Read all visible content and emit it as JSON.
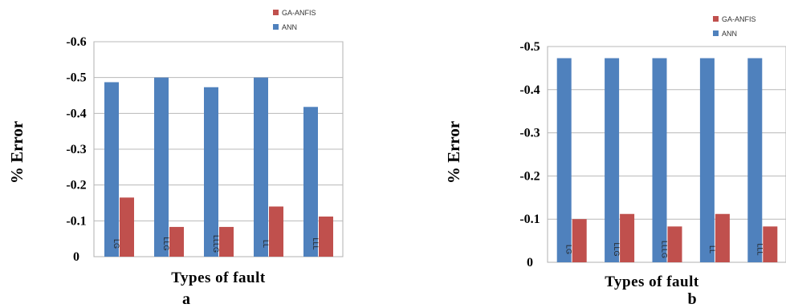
{
  "chart_data": [
    {
      "type": "bar",
      "panel_label": "a",
      "categories": [
        "LG",
        "LLG",
        "LLLG",
        "LL",
        "LLL"
      ],
      "ylabel": "% Error",
      "xlabel": "Types of fault",
      "yticks": [
        "0",
        "-0.1",
        "-0.2",
        "-0.3",
        "-0.4",
        "-0.5",
        "-0.6"
      ],
      "ylim": [
        0,
        -0.6
      ],
      "legend_position": "top-right",
      "series": [
        {
          "name": "GA-ANFIS",
          "color": "#c0504d",
          "values": [
            -0.165,
            -0.083,
            -0.083,
            -0.14,
            -0.112
          ]
        },
        {
          "name": "ANN",
          "color": "#4f81bd",
          "values": [
            -0.487,
            -0.5,
            -0.473,
            -0.5,
            -0.418
          ]
        }
      ]
    },
    {
      "type": "bar",
      "panel_label": "b",
      "categories": [
        "LG",
        "LLG",
        "LLLG",
        "LL",
        "LLL"
      ],
      "ylabel": "% Error",
      "xlabel": "Types of fault",
      "yticks": [
        "0",
        "-0.1",
        "-0.2",
        "-0.3",
        "-0.4",
        "-0.5"
      ],
      "ylim": [
        0,
        -0.5
      ],
      "legend_position": "top-right",
      "series": [
        {
          "name": "GA-ANFIS",
          "color": "#c0504d",
          "values": [
            -0.1,
            -0.112,
            -0.083,
            -0.112,
            -0.083
          ]
        },
        {
          "name": "ANN",
          "color": "#4f81bd",
          "values": [
            -0.473,
            -0.473,
            -0.473,
            -0.473,
            -0.473
          ]
        }
      ]
    }
  ]
}
